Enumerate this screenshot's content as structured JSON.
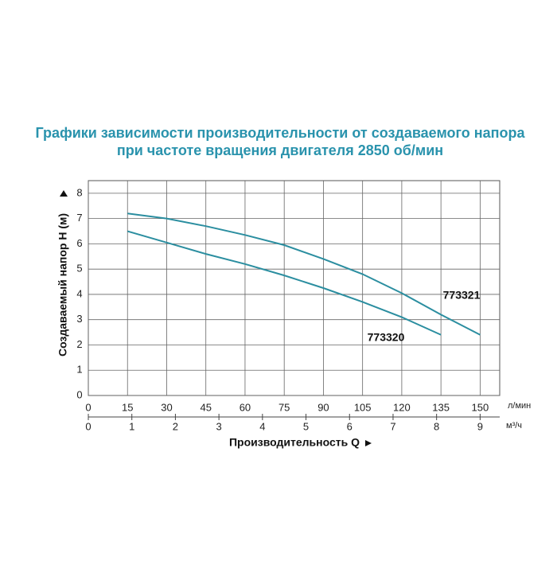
{
  "chart_data": {
    "type": "line",
    "title": [
      "Графики зависимости производительности от создаваемого напора",
      "при частоте вращения двигателя 2850 об/мин"
    ],
    "ylabel": "Создаваемый напор H (м)",
    "xlabel": "Производительность Q",
    "xunit": "л/мин",
    "x2unit": "м³/ч",
    "xlim": [
      0,
      157.5
    ],
    "xticks": [
      0,
      15,
      30,
      45,
      60,
      75,
      90,
      105,
      120,
      135,
      150
    ],
    "x2lim": [
      0,
      9.45
    ],
    "x2ticks": [
      0,
      1,
      2,
      3,
      4,
      5,
      6,
      7,
      8,
      9
    ],
    "ylim": [
      0,
      8.5
    ],
    "yticks": [
      0,
      1,
      2,
      3,
      4,
      5,
      6,
      7,
      8
    ],
    "grid": true,
    "series": [
      {
        "name": "773321",
        "color": "#2b8ea0",
        "x": [
          15,
          30,
          45,
          60,
          75,
          90,
          105,
          120,
          135,
          150
        ],
        "values": [
          7.2,
          7.0,
          6.7,
          6.35,
          5.95,
          5.4,
          4.8,
          4.05,
          3.2,
          2.4
        ]
      },
      {
        "name": "773320",
        "color": "#2b8ea0",
        "x": [
          15,
          30,
          45,
          60,
          75,
          90,
          105,
          120,
          135
        ],
        "values": [
          6.5,
          6.05,
          5.6,
          5.2,
          4.75,
          4.25,
          3.7,
          3.1,
          2.4
        ]
      }
    ]
  }
}
